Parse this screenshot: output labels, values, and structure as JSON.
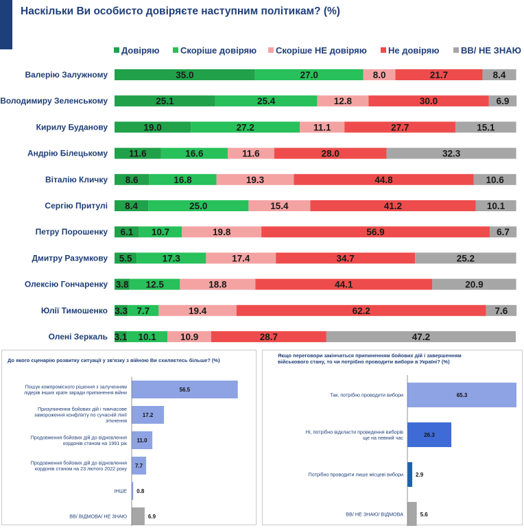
{
  "title": "Наскільки Ви особисто довіряєте наступним політикам? (%)",
  "chart_data": [
    {
      "type": "bar",
      "stacked": true,
      "orientation": "horizontal",
      "title": "Наскільки Ви особисто довіряєте наступним політикам? (%)",
      "legend_position": "top",
      "categories": [
        "Валерію Залужному",
        "Володимиру Зеленському",
        "Кирилу Буданову",
        "Андрію Білецькому",
        "Віталію Кличку",
        "Сергію Притулі",
        "Петру Порошенку",
        "Дмитру Разумкову",
        "Олексію Гончаренку",
        "Юлії Тимошенко",
        "Олені Зеркаль"
      ],
      "series": [
        {
          "name": "Довіряю",
          "color": "#21a14a",
          "values": [
            35.0,
            25.1,
            19.0,
            11.6,
            8.6,
            8.4,
            6.1,
            5.5,
            3.8,
            3.3,
            3.1
          ]
        },
        {
          "name": "Скоріше довіряю",
          "color": "#27c05a",
          "values": [
            27.0,
            25.4,
            27.2,
            16.6,
            16.8,
            25.0,
            10.7,
            17.3,
            12.5,
            7.7,
            10.1
          ]
        },
        {
          "name": "Скоріше НЕ довіряю",
          "color": "#f4a3a3",
          "values": [
            8.0,
            12.8,
            11.1,
            11.6,
            19.3,
            15.4,
            19.8,
            17.4,
            18.8,
            19.4,
            10.9
          ]
        },
        {
          "name": "Не довіряю",
          "color": "#ee4c4c",
          "values": [
            21.7,
            30.0,
            27.7,
            28.0,
            44.8,
            41.2,
            56.9,
            34.7,
            44.1,
            62.2,
            28.7
          ]
        },
        {
          "name": "ВВ/ НЕ ЗНАЮ",
          "color": "#a6a6a6",
          "values": [
            8.4,
            6.9,
            15.1,
            32.3,
            10.6,
            10.1,
            6.7,
            25.2,
            20.9,
            7.6,
            47.2
          ]
        }
      ],
      "xlim": [
        0,
        100
      ]
    },
    {
      "type": "bar",
      "orientation": "horizontal",
      "title": "До якого сценарію розвитку ситуації у зв'язку з війною Ви схиляєтесь більше? (%)",
      "categories": [
        "Пошук компромісного рішення з залученням лідерів інших країн заради припинення війни",
        "Призупинення бойових дій і тимчасове замороження конфлікту по сучасній лінії зіткнення",
        "Продовження бойових дій до відновлення кордонів станом на 1991 рік",
        "Продовження бойових дій до відновлення кордонів станом на 23 лютого 2022 року",
        "ІНШЕ",
        "ВВ/ ВІДМОВА/ НЕ ЗНАЮ"
      ],
      "values": [
        56.5,
        17.2,
        11.0,
        7.7,
        0.8,
        6.9
      ],
      "colors": [
        "#8ea3e3",
        "#8ea3e3",
        "#8ea3e3",
        "#8ea3e3",
        "#8ea3e3",
        "#a6a6a6"
      ],
      "xlim": [
        0,
        65
      ]
    },
    {
      "type": "bar",
      "orientation": "horizontal",
      "title": "Якщо переговори закінчаться припиненням бойових дій і завершенням військового стану, то чи потрібно проводити вибори в Україні? (%)",
      "categories": [
        "Так, потрібно проводити вибори",
        "Ні, потрібно відкласти проведення виборів ще на певний час",
        "Потрібно проводити лише місцеві вибори",
        "ВВ/ НЕ ЗНАЮ/ ВІДМОВА"
      ],
      "values": [
        65.3,
        26.3,
        2.9,
        5.6
      ],
      "colors": [
        "#8ea3e3",
        "#3f6bd6",
        "#1f5fb0",
        "#a6a6a6"
      ],
      "xlim": [
        0,
        65.3
      ]
    }
  ]
}
